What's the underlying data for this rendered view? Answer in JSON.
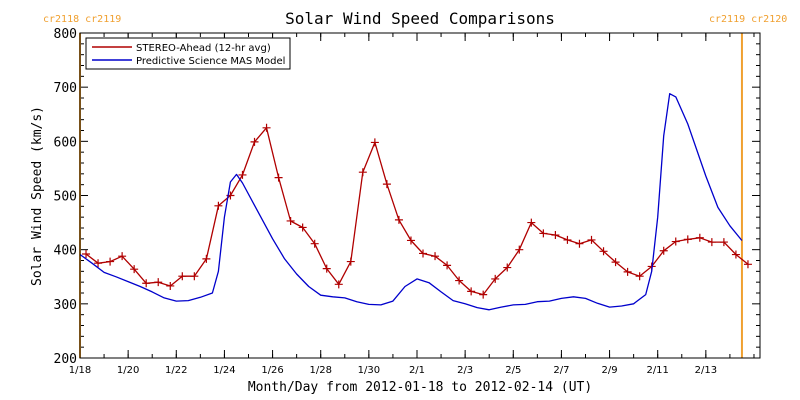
{
  "chart_data": {
    "type": "line",
    "title": "Solar Wind Speed Comparisons",
    "xlabel": "Month/Day from 2012-01-18 to 2012-02-14 (UT)",
    "ylabel": "Solar Wind Speed (km/s)",
    "ylim": [
      200,
      800
    ],
    "xlim": [
      "2012-01-18",
      "2012-02-15 06:00"
    ],
    "yticks": [
      200,
      300,
      400,
      500,
      600,
      700,
      800
    ],
    "xticks": [
      {
        "date": "2012-01-18",
        "label": "1/18"
      },
      {
        "date": "2012-01-20",
        "label": "1/20"
      },
      {
        "date": "2012-01-22",
        "label": "1/22"
      },
      {
        "date": "2012-01-24",
        "label": "1/24"
      },
      {
        "date": "2012-01-26",
        "label": "1/26"
      },
      {
        "date": "2012-01-28",
        "label": "1/28"
      },
      {
        "date": "2012-01-30",
        "label": "1/30"
      },
      {
        "date": "2012-02-01",
        "label": "2/1"
      },
      {
        "date": "2012-02-03",
        "label": "2/3"
      },
      {
        "date": "2012-02-05",
        "label": "2/5"
      },
      {
        "date": "2012-02-07",
        "label": "2/7"
      },
      {
        "date": "2012-02-09",
        "label": "2/9"
      },
      {
        "date": "2012-02-11",
        "label": "2/11"
      },
      {
        "date": "2012-02-13",
        "label": "2/13"
      }
    ],
    "carrington_markers": [
      {
        "date": "2012-01-18",
        "label": "cr2118 cr2119",
        "position": "top-left"
      },
      {
        "date": "2012-02-14 12:00",
        "label": "cr2119 cr2120",
        "position": "top-right"
      }
    ],
    "marker_color": "#f0a030",
    "legend_position": "top-left",
    "series": [
      {
        "name": "STEREO-Ahead (12-hr avg)",
        "color": "#b00000",
        "marker": "plus",
        "points": [
          [
            "2012-01-18 06:00",
            392
          ],
          [
            "2012-01-18 18:00",
            375
          ],
          [
            "2012-01-19 06:00",
            378
          ],
          [
            "2012-01-19 18:00",
            388
          ],
          [
            "2012-01-20 06:00",
            364
          ],
          [
            "2012-01-20 18:00",
            338
          ],
          [
            "2012-01-21 06:00",
            340
          ],
          [
            "2012-01-21 18:00",
            333
          ],
          [
            "2012-01-22 06:00",
            351
          ],
          [
            "2012-01-22 18:00",
            351
          ],
          [
            "2012-01-23 06:00",
            383
          ],
          [
            "2012-01-23 18:00",
            481
          ],
          [
            "2012-01-24 06:00",
            500
          ],
          [
            "2012-01-24 18:00",
            538
          ],
          [
            "2012-01-25 06:00",
            599
          ],
          [
            "2012-01-25 18:00",
            625
          ],
          [
            "2012-01-26 06:00",
            533
          ],
          [
            "2012-01-26 18:00",
            453
          ],
          [
            "2012-01-27 06:00",
            441
          ],
          [
            "2012-01-27 18:00",
            411
          ],
          [
            "2012-01-28 06:00",
            365
          ],
          [
            "2012-01-28 18:00",
            336
          ],
          [
            "2012-01-29 06:00",
            378
          ],
          [
            "2012-01-29 18:00",
            543
          ],
          [
            "2012-01-30 06:00",
            598
          ],
          [
            "2012-01-30 18:00",
            521
          ],
          [
            "2012-01-31 06:00",
            455
          ],
          [
            "2012-01-31 18:00",
            417
          ],
          [
            "2012-02-01 06:00",
            393
          ],
          [
            "2012-02-01 18:00",
            388
          ],
          [
            "2012-02-02 06:00",
            371
          ],
          [
            "2012-02-02 18:00",
            343
          ],
          [
            "2012-02-03 06:00",
            323
          ],
          [
            "2012-02-03 18:00",
            317
          ],
          [
            "2012-02-04 06:00",
            346
          ],
          [
            "2012-02-04 18:00",
            367
          ],
          [
            "2012-02-05 06:00",
            400
          ],
          [
            "2012-02-05 18:00",
            450
          ],
          [
            "2012-02-06 06:00",
            430
          ],
          [
            "2012-02-06 18:00",
            427
          ],
          [
            "2012-02-07 06:00",
            418
          ],
          [
            "2012-02-07 18:00",
            411
          ],
          [
            "2012-02-08 06:00",
            418
          ],
          [
            "2012-02-08 18:00",
            397
          ],
          [
            "2012-02-09 06:00",
            377
          ],
          [
            "2012-02-09 18:00",
            359
          ],
          [
            "2012-02-10 06:00",
            351
          ],
          [
            "2012-02-10 18:00",
            369
          ],
          [
            "2012-02-11 06:00",
            398
          ],
          [
            "2012-02-11 18:00",
            415
          ],
          [
            "2012-02-12 06:00",
            419
          ],
          [
            "2012-02-12 18:00",
            422
          ],
          [
            "2012-02-13 06:00",
            414
          ],
          [
            "2012-02-13 18:00",
            414
          ],
          [
            "2012-02-14 06:00",
            391
          ],
          [
            "2012-02-14 18:00",
            373
          ]
        ]
      },
      {
        "name": "Predictive Science MAS Model",
        "color": "#0000cc",
        "marker": "none",
        "points": [
          [
            "2012-01-18 00:00",
            391
          ],
          [
            "2012-01-18 12:00",
            375
          ],
          [
            "2012-01-19 00:00",
            358
          ],
          [
            "2012-01-19 12:00",
            350
          ],
          [
            "2012-01-20 00:00",
            341
          ],
          [
            "2012-01-20 12:00",
            332
          ],
          [
            "2012-01-21 00:00",
            322
          ],
          [
            "2012-01-21 12:00",
            311
          ],
          [
            "2012-01-22 00:00",
            305
          ],
          [
            "2012-01-22 12:00",
            306
          ],
          [
            "2012-01-23 00:00",
            312
          ],
          [
            "2012-01-23 12:00",
            320
          ],
          [
            "2012-01-23 18:00",
            360
          ],
          [
            "2012-01-24 00:00",
            460
          ],
          [
            "2012-01-24 06:00",
            525
          ],
          [
            "2012-01-24 12:00",
            539
          ],
          [
            "2012-01-24 18:00",
            523
          ],
          [
            "2012-01-25 06:00",
            482
          ],
          [
            "2012-01-26 00:00",
            420
          ],
          [
            "2012-01-26 12:00",
            383
          ],
          [
            "2012-01-27 00:00",
            355
          ],
          [
            "2012-01-27 12:00",
            332
          ],
          [
            "2012-01-28 00:00",
            316
          ],
          [
            "2012-01-28 12:00",
            313
          ],
          [
            "2012-01-29 00:00",
            311
          ],
          [
            "2012-01-29 12:00",
            304
          ],
          [
            "2012-01-30 00:00",
            299
          ],
          [
            "2012-01-30 12:00",
            298
          ],
          [
            "2012-01-31 00:00",
            305
          ],
          [
            "2012-01-31 12:00",
            332
          ],
          [
            "2012-02-01 00:00",
            346
          ],
          [
            "2012-02-01 12:00",
            339
          ],
          [
            "2012-02-02 00:00",
            322
          ],
          [
            "2012-02-02 12:00",
            306
          ],
          [
            "2012-02-03 00:00",
            300
          ],
          [
            "2012-02-03 12:00",
            293
          ],
          [
            "2012-02-04 00:00",
            289
          ],
          [
            "2012-02-04 12:00",
            294
          ],
          [
            "2012-02-05 00:00",
            298
          ],
          [
            "2012-02-05 12:00",
            299
          ],
          [
            "2012-02-06 00:00",
            304
          ],
          [
            "2012-02-06 12:00",
            305
          ],
          [
            "2012-02-07 00:00",
            310
          ],
          [
            "2012-02-07 12:00",
            313
          ],
          [
            "2012-02-08 00:00",
            310
          ],
          [
            "2012-02-08 12:00",
            301
          ],
          [
            "2012-02-09 00:00",
            294
          ],
          [
            "2012-02-09 12:00",
            296
          ],
          [
            "2012-02-10 00:00",
            300
          ],
          [
            "2012-02-10 12:00",
            317
          ],
          [
            "2012-02-10 18:00",
            360
          ],
          [
            "2012-02-11 00:00",
            460
          ],
          [
            "2012-02-11 06:00",
            610
          ],
          [
            "2012-02-11 12:00",
            688
          ],
          [
            "2012-02-11 18:00",
            682
          ],
          [
            "2012-02-12 06:00",
            632
          ],
          [
            "2012-02-13 00:00",
            536
          ],
          [
            "2012-02-13 12:00",
            478
          ],
          [
            "2012-02-14 00:00",
            444
          ],
          [
            "2012-02-14 12:00",
            417
          ]
        ]
      }
    ]
  }
}
